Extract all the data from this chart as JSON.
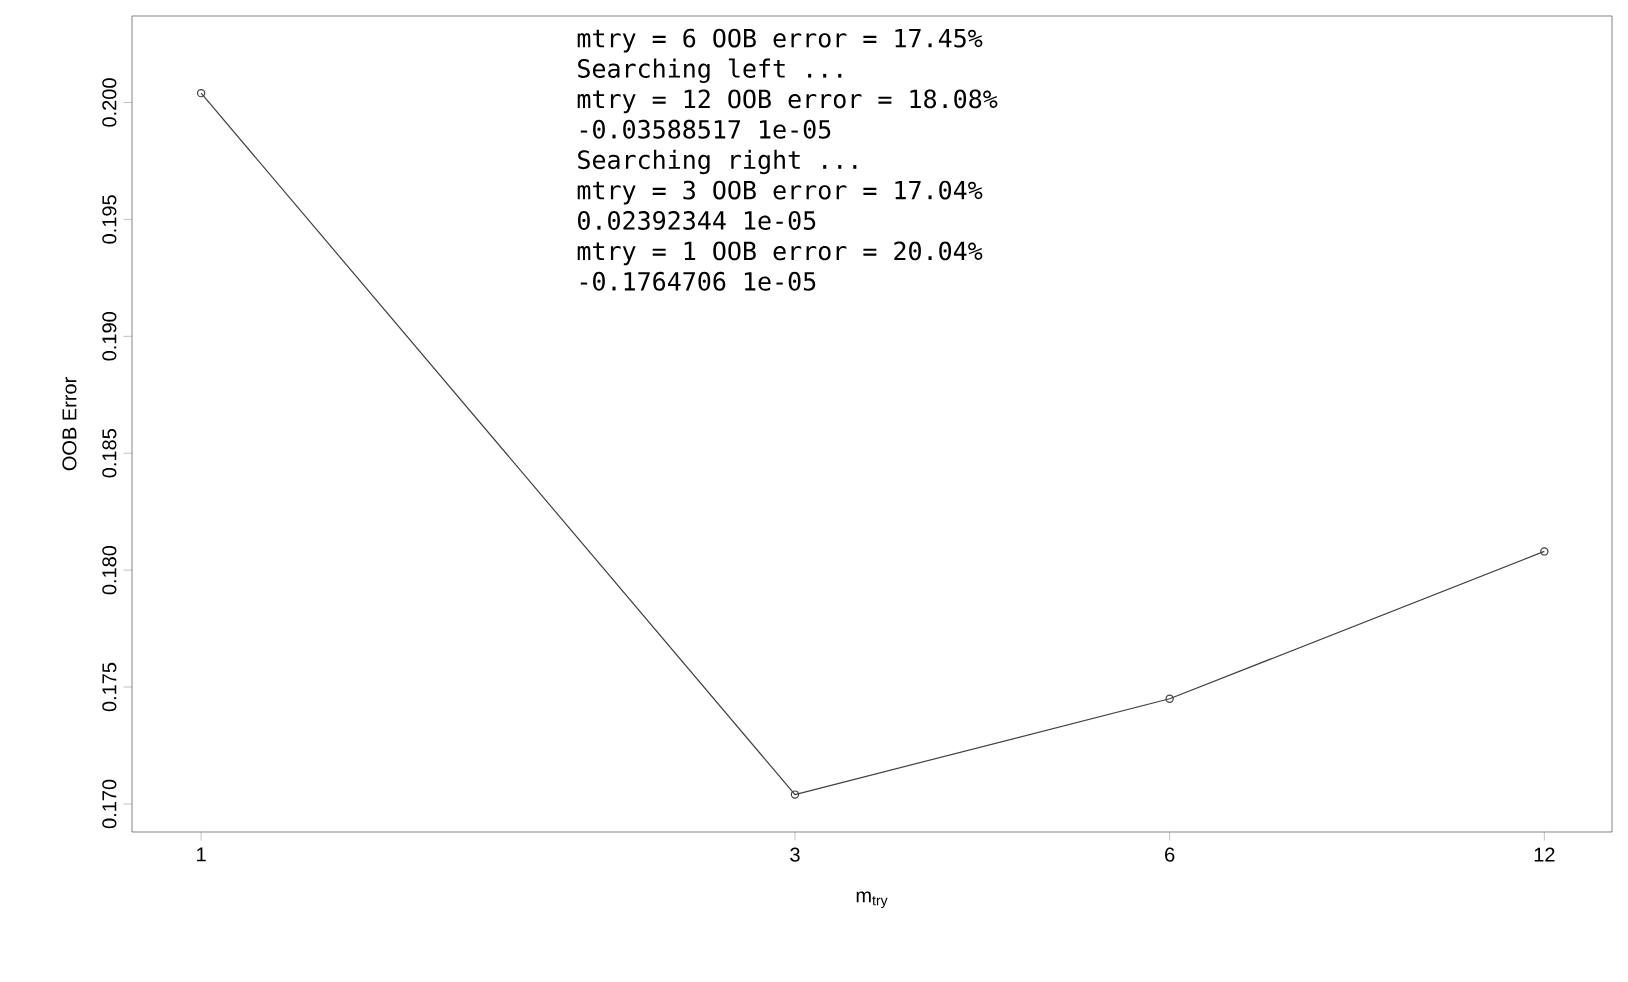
{
  "chart_data": {
    "type": "line",
    "xlabel": "m$_{try}$",
    "ylabel": "OOB Error",
    "x": [
      1,
      3,
      6,
      12
    ],
    "series": [
      {
        "color": "#404040",
        "values": [
          0.2004,
          0.1704,
          0.1745,
          0.1808
        ]
      }
    ],
    "log": "x",
    "marker": "circle",
    "line_style": "solid",
    "grid": false,
    "xlim": [
      0.88,
      13.6
    ],
    "xticks": [
      1,
      3,
      6,
      12
    ],
    "ylim": [
      0.1688,
      0.2037
    ],
    "yticks": [
      {
        "value": 0.17,
        "label": "0.170"
      },
      {
        "value": 0.175,
        "label": "0.175"
      },
      {
        "value": 0.18,
        "label": "0.180"
      },
      {
        "value": 0.185,
        "label": "0.185"
      },
      {
        "value": 0.19,
        "label": "0.190"
      },
      {
        "value": 0.195,
        "label": "0.195"
      },
      {
        "value": 0.2,
        "label": "0.200"
      }
    ],
    "annotations": [
      "mtry = 6  OOB error = 17.45%",
      "Searching left ...",
      "mtry = 12       OOB error = 18.08%",
      "-0.03588517 1e-05",
      "Searching right ...",
      "mtry = 3        OOB error = 17.04%",
      "0.02392344 1e-05",
      "mtry = 1        OOB error = 20.04%",
      "-0.1764706 1e-05"
    ]
  }
}
